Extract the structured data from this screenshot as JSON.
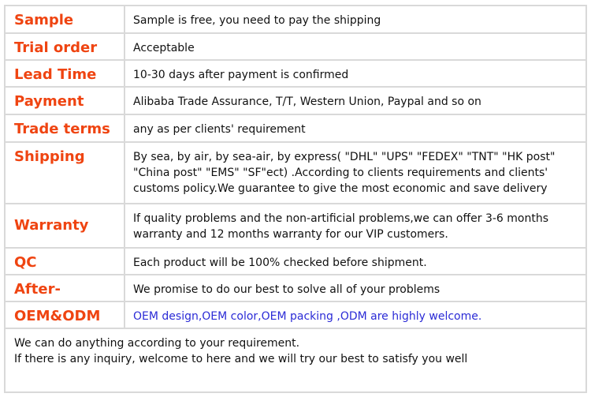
{
  "rows": [
    {
      "label": "Sample",
      "value": [
        "Sample is free, you need to pay the shipping"
      ]
    },
    {
      "label": "Trial order",
      "value": [
        "Acceptable"
      ]
    },
    {
      "label": "Lead Time",
      "value": [
        "10-30 days after payment is confirmed"
      ]
    },
    {
      "label": "Payment",
      "value": [
        "Alibaba Trade Assurance, T/T, Western Union, Paypal and so on"
      ]
    },
    {
      "label": "Trade terms",
      "value": [
        "any as per clients' requirement"
      ]
    },
    {
      "label": "Shipping",
      "value": [
        "By sea, by air, by sea-air, by express( \"DHL\" \"UPS\" \"FEDEX\" \"TNT\" \"HK post\"",
        "\"China post\" \"EMS\" \"SF\"ect) .According to clients requirements and clients'",
        "customs policy.We guarantee to give the most economic and save delivery"
      ]
    },
    {
      "label": "Warranty",
      "value": [
        "If quality problems and the non-artificial problems,we can offer 3-6 months",
        "warranty and 12 months warranty for our VIP customers."
      ]
    },
    {
      "label": "QC",
      "value": [
        "Each product will be 100% checked before shipment."
      ]
    },
    {
      "label": "After-",
      "value": [
        "We promise to do our best to solve all of your problems"
      ]
    },
    {
      "label": "OEM&ODM",
      "value": [
        "OEM design,OEM color,OEM packing ,ODM are highly welcome."
      ]
    }
  ],
  "footer": [
    "We can do anything according to your requirement.",
    "If there is any inquiry, welcome to here and we will try our best to satisfy you well"
  ],
  "colors": {
    "label": "#ef4411",
    "oem_text": "#2b2bd6",
    "border": "#d9d9d9"
  }
}
